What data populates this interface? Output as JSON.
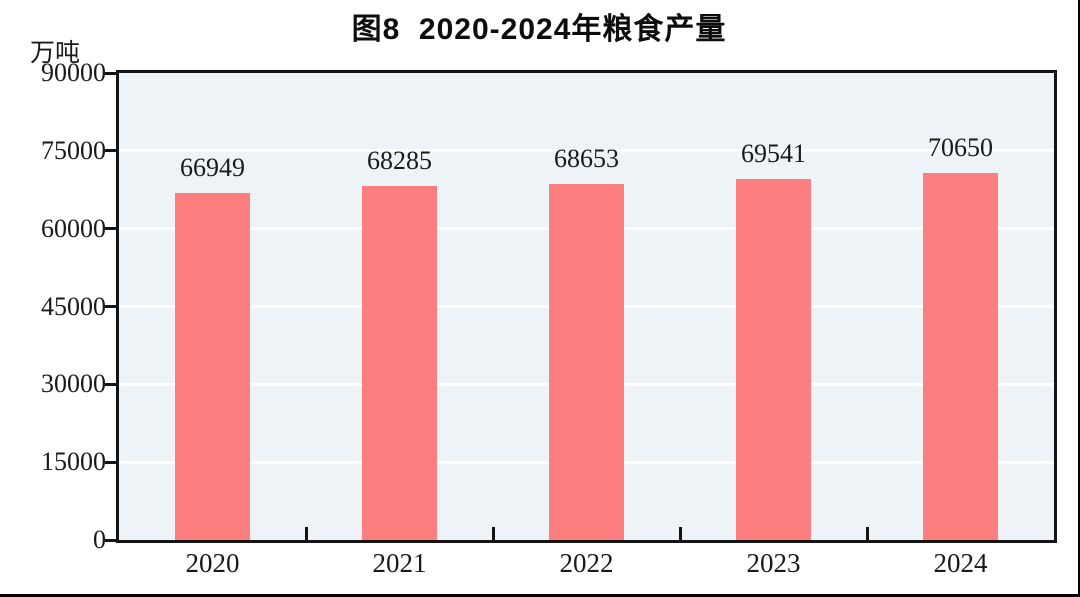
{
  "figure": {
    "title": "图8  2020-2024年粮食产量",
    "unit_label": "万吨"
  },
  "chart_data": {
    "type": "bar",
    "title": "图8  2020-2024年粮食产量",
    "categories": [
      "2020",
      "2021",
      "2022",
      "2023",
      "2024"
    ],
    "values": [
      66949,
      68285,
      68653,
      69541,
      70650
    ],
    "value_labels": [
      "66949",
      "68285",
      "68653",
      "69541",
      "70650"
    ],
    "xlabel": "",
    "ylabel": "万吨",
    "ylim": [
      0,
      90000
    ],
    "yticks": [
      0,
      15000,
      30000,
      45000,
      60000,
      75000,
      90000
    ],
    "ytick_labels": [
      "0",
      "15000",
      "30000",
      "45000",
      "60000",
      "75000",
      "90000"
    ],
    "grid": true,
    "legend": "none",
    "colors": {
      "bar_fill": "#FC7E7E",
      "plot_background": "#EDF3F6",
      "gridline": "#FFFFFF",
      "axis": "#141414",
      "text": "#1A1A1A"
    }
  }
}
